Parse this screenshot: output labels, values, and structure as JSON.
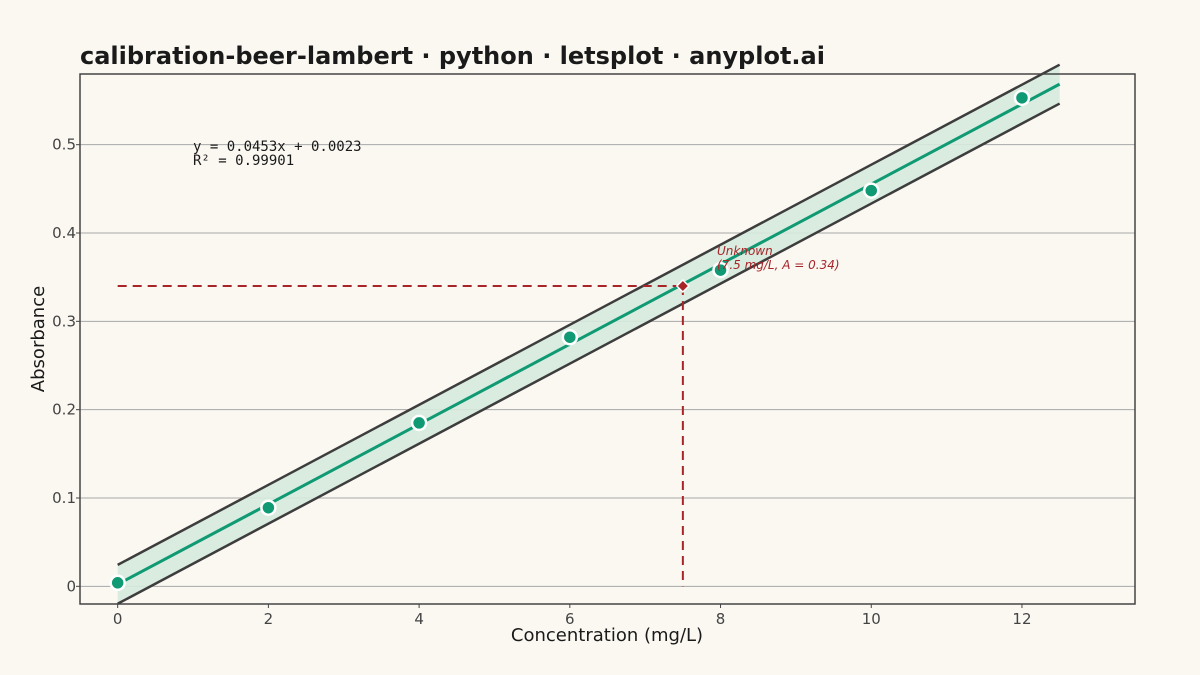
{
  "chart_data": {
    "type": "scatter",
    "title": "calibration-beer-lambert · python · letsplot · anyplot.ai",
    "xlabel": "Concentration (mg/L)",
    "ylabel": "Absorbance",
    "xlim": [
      -0.5,
      13.5
    ],
    "ylim": [
      -0.02,
      0.58
    ],
    "x_ticks": [
      0,
      2,
      4,
      6,
      8,
      10,
      12
    ],
    "x_tick_labels": [
      "0",
      "2",
      "4",
      "6",
      "8",
      "10",
      "12"
    ],
    "y_ticks": [
      0,
      0.1,
      0.2,
      0.3,
      0.4,
      0.5
    ],
    "y_tick_labels": [
      "0",
      "0.1",
      "0.2",
      "0.3",
      "0.4",
      "0.5"
    ],
    "grid": "horizontal",
    "series": [
      {
        "points": [
          {
            "x": 0,
            "y": 0.004
          },
          {
            "x": 2,
            "y": 0.089
          },
          {
            "x": 4,
            "y": 0.185
          },
          {
            "x": 6,
            "y": 0.282
          },
          {
            "x": 8,
            "y": 0.358
          },
          {
            "x": 10,
            "y": 0.448
          },
          {
            "x": 12,
            "y": 0.553
          }
        ]
      }
    ],
    "fit": {
      "slope": 0.0453,
      "intercept": 0.0023,
      "x_range": [
        0,
        12.5
      ],
      "equation_text": "y = 0.0453x + 0.0023",
      "r2_text": "R² = 0.99901"
    },
    "prediction_band": {
      "half_width": 0.022,
      "x_range": [
        0,
        12.5
      ]
    },
    "unknown": {
      "x": 7.5,
      "y": 0.34,
      "label_line1": "Unknown",
      "label_line2": "(7.5 mg/L, A = 0.34)"
    },
    "colors": {
      "background": "#faf8f1",
      "points": "#0f9a74",
      "fit_line": "#0f9a74",
      "band_fill": "#d6eadd",
      "band_edge": "#3d3d3d",
      "unknown": "#a8252a",
      "grid": "#a9a9a9",
      "frame": "#444444"
    }
  }
}
